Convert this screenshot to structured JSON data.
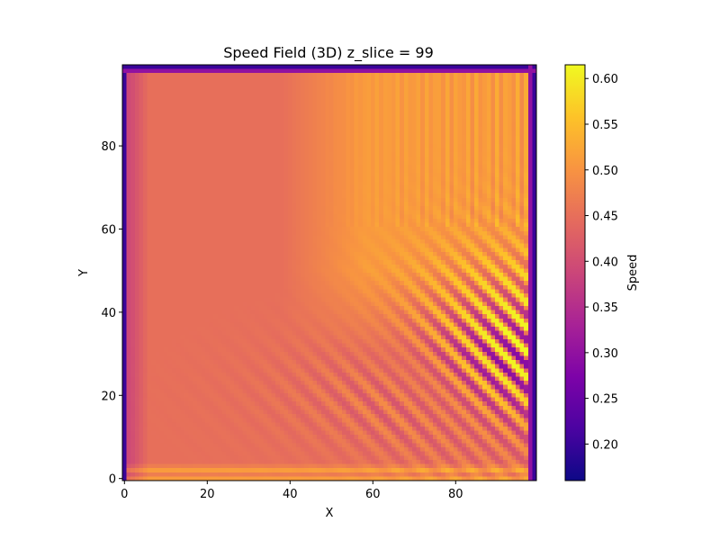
{
  "chart_data": {
    "type": "heatmap",
    "title": "Speed Field (3D) z_slice = 99",
    "xlabel": "X",
    "ylabel": "Y",
    "xlim": [
      0,
      99
    ],
    "ylim": [
      0,
      99
    ],
    "xticks": [
      "0",
      "20",
      "40",
      "60",
      "80"
    ],
    "yticks": [
      "0",
      "20",
      "40",
      "60",
      "80"
    ],
    "colormap": "plasma",
    "colorbar": {
      "label": "Speed",
      "vmin": 0.16,
      "vmax": 0.615,
      "ticks": [
        "0.20",
        "0.25",
        "0.30",
        "0.35",
        "0.40",
        "0.45",
        "0.50",
        "0.55",
        "0.60"
      ]
    },
    "field_summary": {
      "background_left_region": 0.45,
      "background_upper_right_region": 0.51,
      "boundary_value": 0.18,
      "oscillation_region": "lower-right quadrant with diagonal bands",
      "oscillation_range": [
        0.2,
        0.61
      ]
    }
  }
}
